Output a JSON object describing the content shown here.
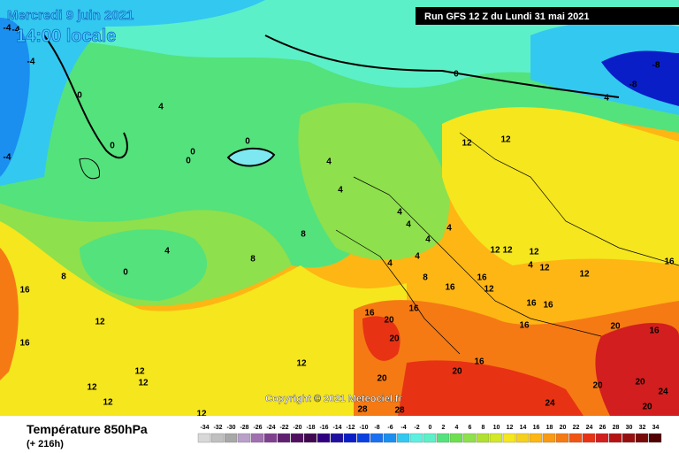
{
  "header": {
    "date": "Mercredi 9 juin 2021",
    "time": "14:00 locale",
    "run": "Run GFS 12 Z du Lundi 31 mai 2021"
  },
  "footer": {
    "title": "Température 850hPa",
    "lead": "(+ 216h)",
    "copyright": "Copyright © 2021 Meteociel.fr"
  },
  "legend": {
    "labels": [
      -34,
      -32,
      -30,
      -28,
      -26,
      -24,
      -22,
      -20,
      -18,
      -16,
      -14,
      -12,
      -10,
      -8,
      -6,
      -4,
      -2,
      0,
      2,
      4,
      6,
      8,
      10,
      12,
      14,
      16,
      18,
      20,
      22,
      24,
      26,
      28,
      30,
      32,
      34
    ]
  },
  "contour_labels": [
    -4,
    -4,
    -4,
    -4,
    0,
    0,
    0,
    0,
    0,
    0,
    0,
    4,
    4,
    4,
    4,
    4,
    4,
    4,
    4,
    4,
    4,
    4,
    4,
    -8,
    -8,
    8,
    8,
    8,
    8,
    12,
    12,
    12,
    12,
    12,
    12,
    12,
    12,
    12,
    12,
    12,
    12,
    12,
    12,
    12,
    16,
    16,
    16,
    16,
    16,
    16,
    16,
    16,
    16,
    16,
    16,
    16,
    20,
    20,
    20,
    20,
    20,
    20,
    20,
    24,
    24,
    20,
    28,
    28
  ]
}
